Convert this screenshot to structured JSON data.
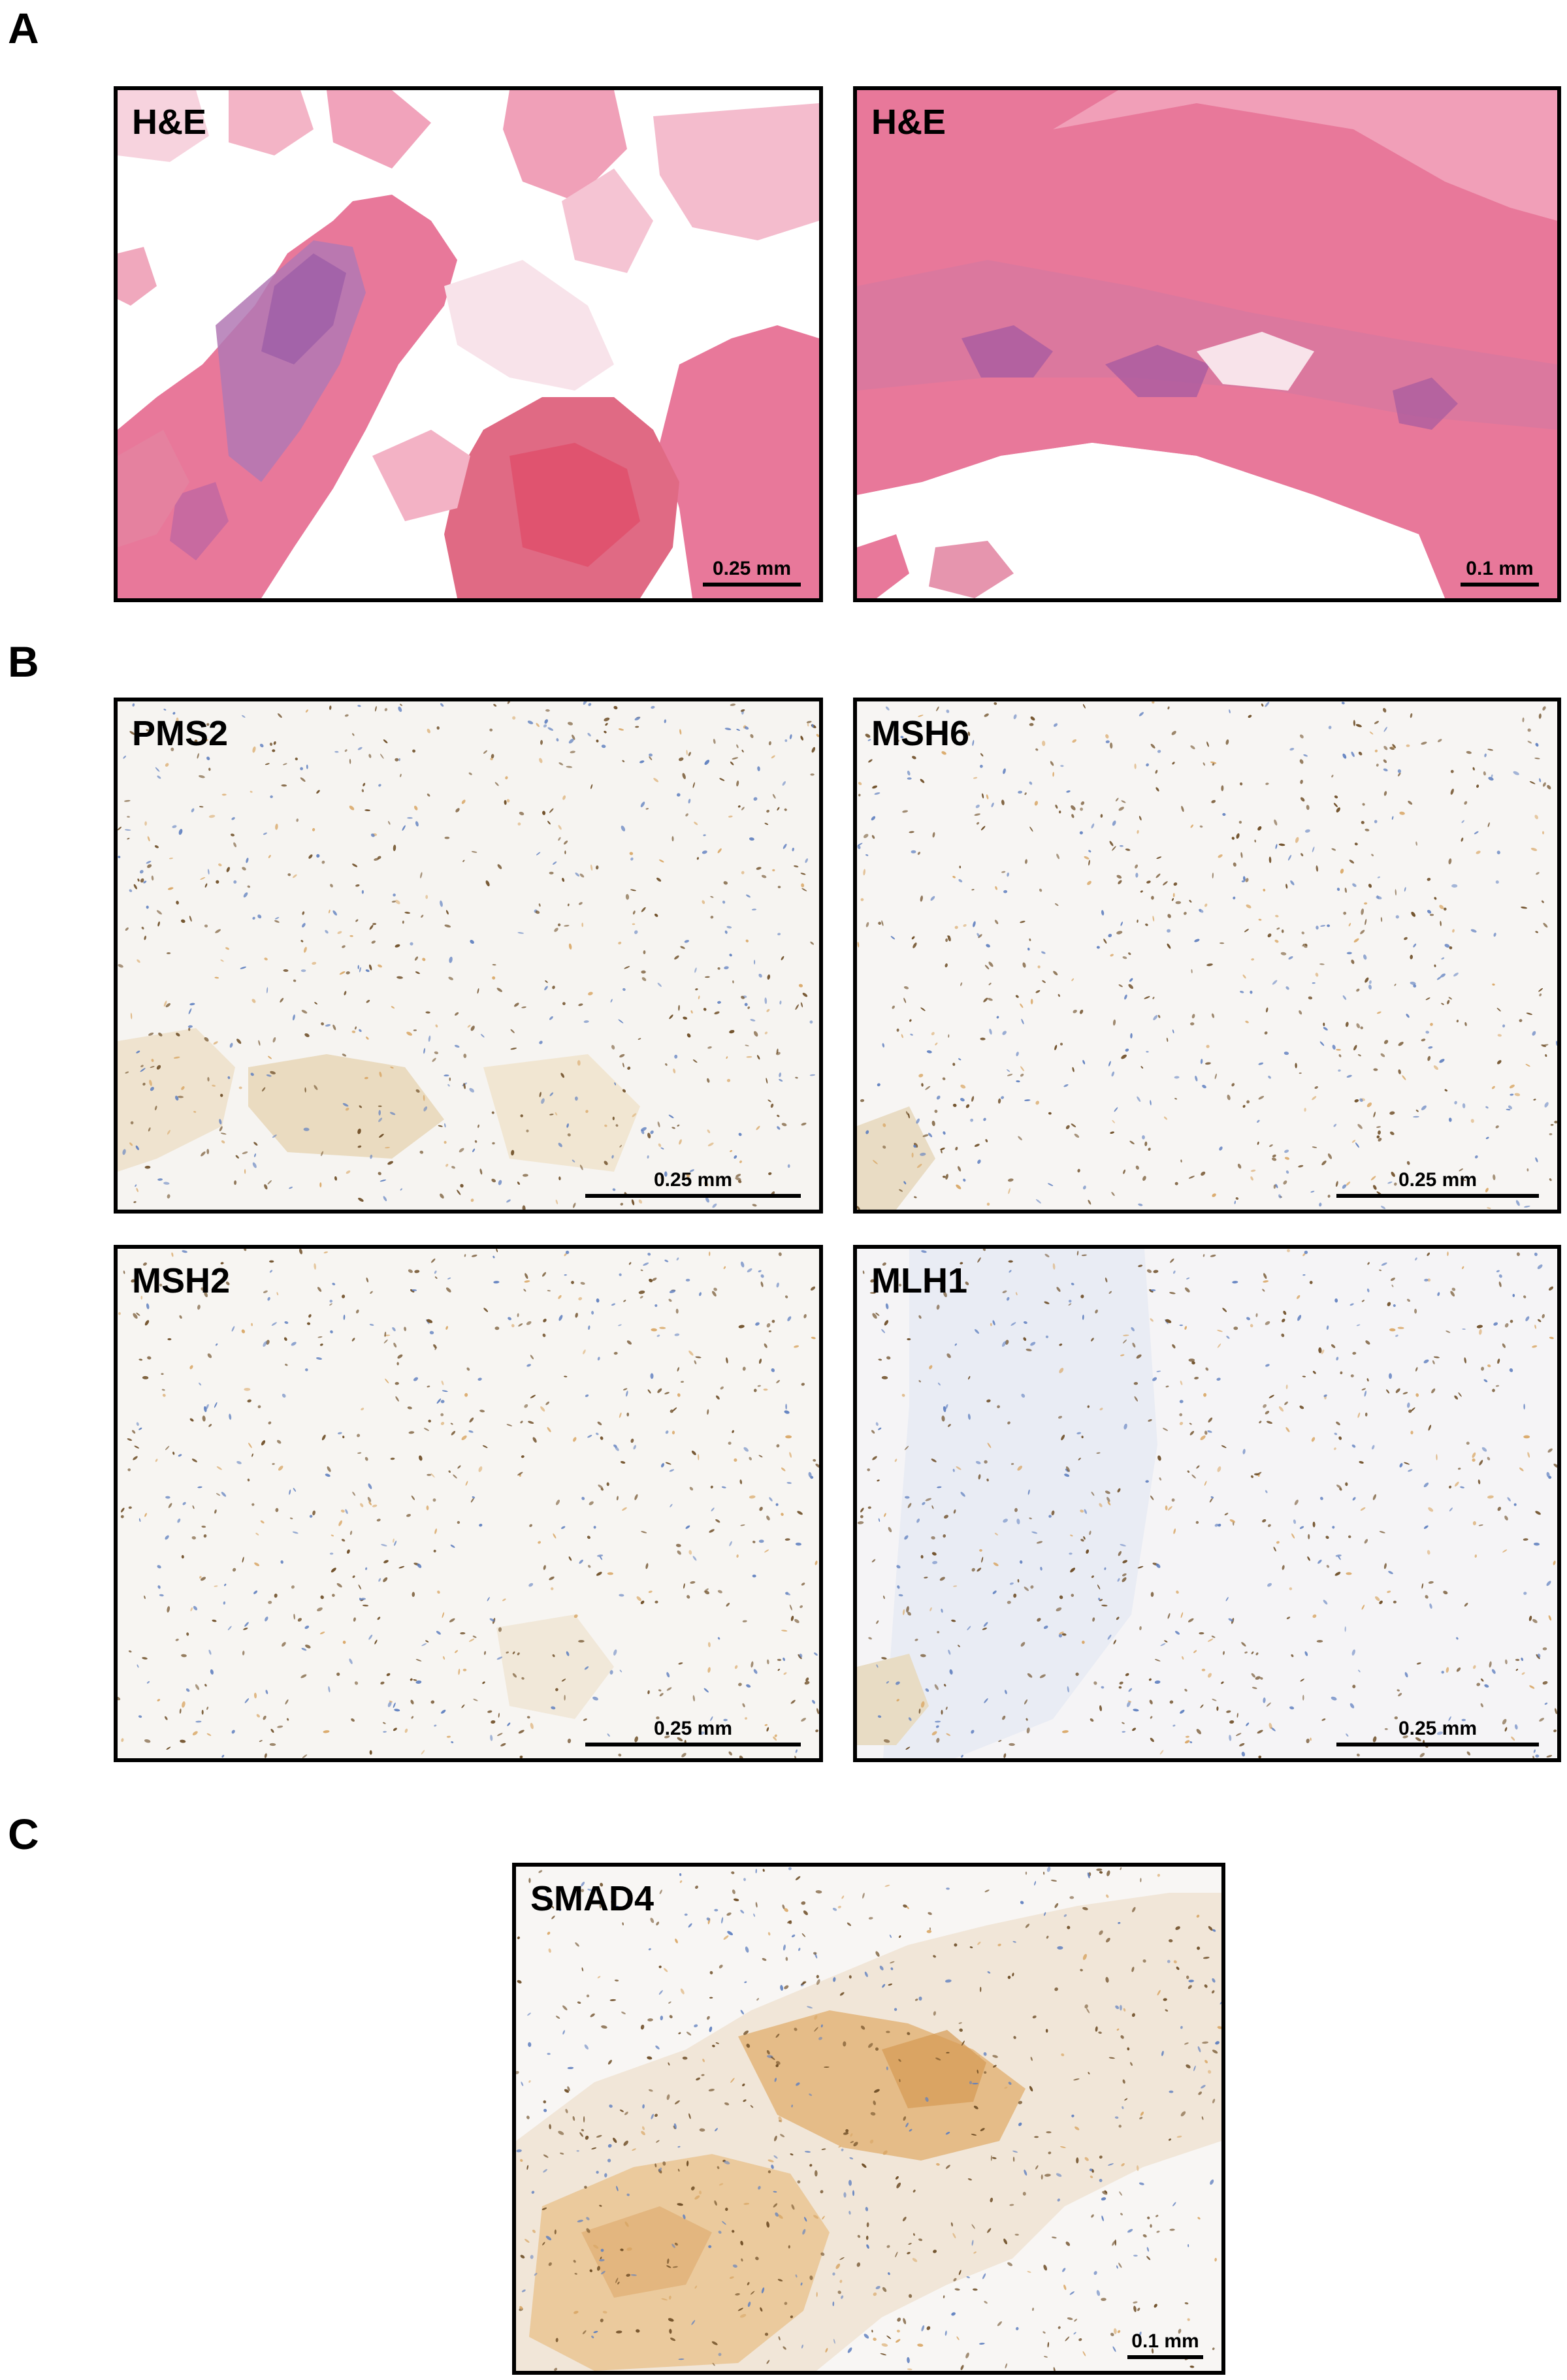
{
  "sections": {
    "a": "A",
    "b": "B",
    "c": "C"
  },
  "panels": {
    "a1": {
      "label": "H&E",
      "scale": "0.25 mm"
    },
    "a2": {
      "label": "H&E",
      "scale": "0.1 mm"
    },
    "b1": {
      "label": "PMS2",
      "scale": "0.25 mm"
    },
    "b2": {
      "label": "MSH6",
      "scale": "0.25 mm"
    },
    "b3": {
      "label": "MSH2",
      "scale": "0.25 mm"
    },
    "b4": {
      "label": "MLH1",
      "scale": "0.25 mm"
    },
    "c1": {
      "label": "SMAD4",
      "scale": "0.1 mm"
    }
  },
  "colors": {
    "he_pink": "#e8789a",
    "he_purple": "#9a5aa6",
    "ihc_background": "#f4f1ee",
    "ihc_brown": "#6b4a22",
    "hematoxylin_blue": "#5f7fbf",
    "dab_tan": "#d9a766"
  }
}
